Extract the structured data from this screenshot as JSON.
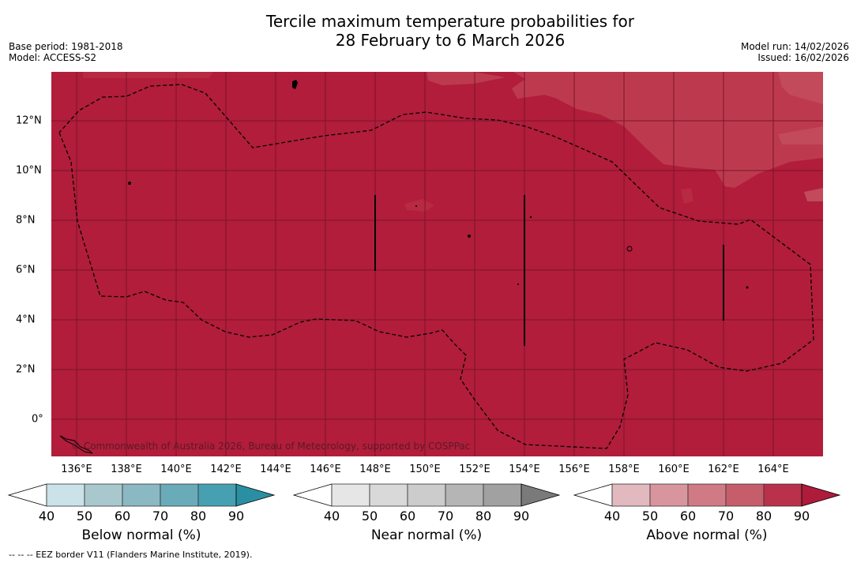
{
  "title_line1": "Tercile maximum temperature probabilities for",
  "title_line2": "28 February to 6 March 2026",
  "base_period": "Base period: 1981-2018",
  "model": "Model: ACCESS-S2",
  "model_run": "Model run: 14/02/2026",
  "issued": "Issued: 16/02/2026",
  "copyright": "© Commonwealth of Australia 2026, Bureau of Meteorology, supported by COSPPac",
  "x_ticks": [
    "136°E",
    "138°E",
    "140°E",
    "142°E",
    "144°E",
    "146°E",
    "148°E",
    "150°E",
    "152°E",
    "154°E",
    "156°E",
    "158°E",
    "160°E",
    "162°E",
    "164°E"
  ],
  "y_ticks": [
    "12°N",
    "10°N",
    "8°N",
    "6°N",
    "4°N",
    "2°N",
    "0°"
  ],
  "colorbars": [
    {
      "label": "Below normal (%)",
      "ticks": [
        "40",
        "50",
        "60",
        "70",
        "80",
        "90"
      ],
      "colors": [
        "#ffffff",
        "#cbe2e8",
        "#a9c8ce",
        "#8ab8c3",
        "#6aabb9",
        "#47a0b1",
        "#2b8fa3"
      ]
    },
    {
      "label": "Near normal (%)",
      "ticks": [
        "40",
        "50",
        "60",
        "70",
        "80",
        "90"
      ],
      "colors": [
        "#ffffff",
        "#e6e6e6",
        "#d9d9d9",
        "#cccccc",
        "#b5b5b5",
        "#a1a1a1",
        "#7a7a7a"
      ]
    },
    {
      "label": "Above normal (%)",
      "ticks": [
        "40",
        "50",
        "60",
        "70",
        "80",
        "90"
      ],
      "colors": [
        "#ffffff",
        "#e2b9bf",
        "#d9959d",
        "#cf7a84",
        "#c55d6b",
        "#b9314a",
        "#ae1b3b"
      ]
    }
  ],
  "footer": "--  --  -- EEZ border V11 (Flanders Marine Institute, 2019)."
}
